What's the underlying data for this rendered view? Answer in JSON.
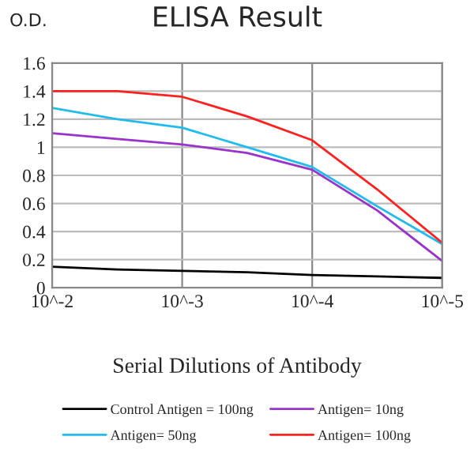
{
  "chart_data": {
    "type": "line",
    "title": "ELISA Result",
    "ylabel": "O.D.",
    "xlabel": "Serial Dilutions of Antibody",
    "x": [
      0.01,
      0.00316,
      0.001,
      0.000316,
      0.0001,
      3.16e-05,
      1e-05
    ],
    "series": [
      {
        "name": "Control Antigen = 100ng",
        "color": "#000000",
        "values": [
          0.15,
          0.13,
          0.12,
          0.11,
          0.09,
          0.08,
          0.07
        ]
      },
      {
        "name": "Antigen= 10ng",
        "color": "#9933cc",
        "values": [
          1.1,
          1.06,
          1.02,
          0.96,
          0.84,
          0.55,
          0.19
        ]
      },
      {
        "name": "Antigen= 50ng",
        "color": "#22bbee",
        "values": [
          1.28,
          1.2,
          1.14,
          1.0,
          0.86,
          0.58,
          0.31
        ]
      },
      {
        "name": "Antigen= 100ng",
        "color": "#ff2020",
        "values": [
          1.4,
          1.4,
          1.36,
          1.22,
          1.05,
          0.7,
          0.32
        ]
      }
    ],
    "log": "x",
    "xlim": [
      0.01,
      1e-05
    ],
    "xticks": [
      {
        "value": 0.01,
        "label": "10^-2"
      },
      {
        "value": 0.001,
        "label": "10^-3"
      },
      {
        "value": 0.0001,
        "label": "10^-4"
      },
      {
        "value": 1e-05,
        "label": "10^-5"
      }
    ],
    "ylim": [
      0,
      1.6
    ],
    "yticks": [
      {
        "value": 0,
        "label": "0"
      },
      {
        "value": 0.2,
        "label": "0.2"
      },
      {
        "value": 0.4,
        "label": "0.4"
      },
      {
        "value": 0.6,
        "label": "0.6"
      },
      {
        "value": 0.8,
        "label": "0.8"
      },
      {
        "value": 1,
        "label": "1"
      },
      {
        "value": 1.2,
        "label": "1.2"
      },
      {
        "value": 1.4,
        "label": "1.4"
      },
      {
        "value": 1.6,
        "label": "1.6"
      }
    ],
    "grid": true,
    "legend": "bottom",
    "marker": "none",
    "line_style": "solid"
  }
}
